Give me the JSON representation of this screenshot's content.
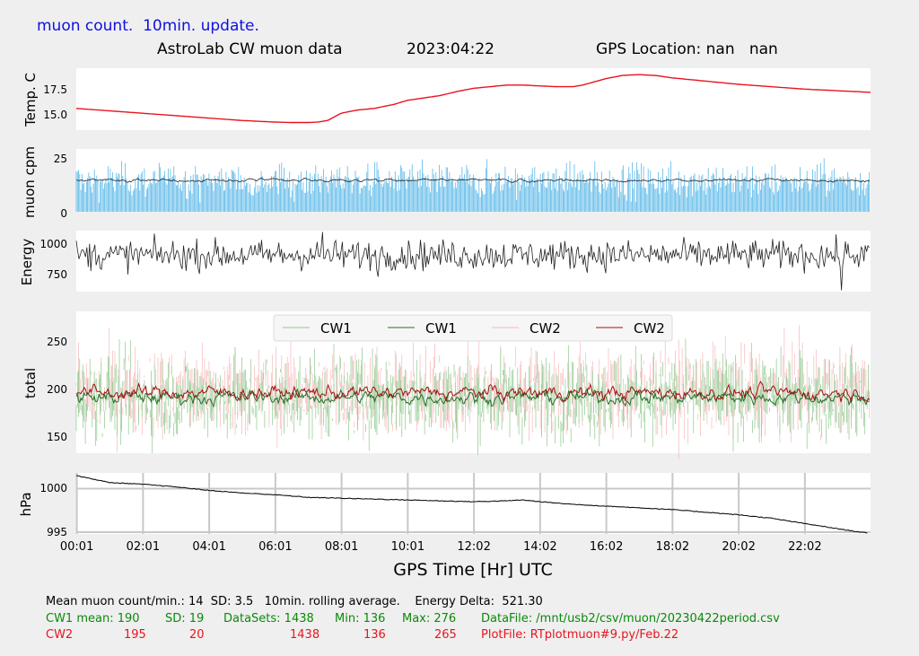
{
  "header": {
    "top_title": "muon count.  10min. update.",
    "subtitle_left": "AstroLab CW muon data",
    "subtitle_date": "2023:04:22",
    "subtitle_gps": "GPS Location: nan   nan"
  },
  "colors": {
    "accent_blue": "#1010e0",
    "green": "#0a8a0a",
    "red": "#e8141e",
    "cw1_raw": "#8cc88c",
    "cw1_avg": "#2a6e2a",
    "cw2_raw": "#f5b8b8",
    "cw2_avg": "#a01010",
    "muon_bar": "#5bb8e8",
    "temp_line": "#e8141e"
  },
  "chart_data": [
    {
      "type": "line",
      "name": "temperature",
      "ylabel": "Temp. C",
      "yticks": [
        "17.5",
        "15.0"
      ],
      "ylim": [
        12.8,
        20.5
      ],
      "series": [
        {
          "x": [
            0,
            1,
            2,
            3,
            4,
            5,
            6,
            6.5,
            7,
            7.3,
            7.6,
            8,
            8.5,
            9,
            9.6,
            10,
            10.5,
            11,
            11.5,
            12,
            12.5,
            13,
            13.5,
            14,
            14.5,
            15,
            15.3,
            16,
            16.5,
            17,
            17.5,
            18,
            19,
            20,
            21,
            22,
            23,
            24
          ],
          "y": [
            15.5,
            15.2,
            14.9,
            14.6,
            14.3,
            14.0,
            13.8,
            13.75,
            13.75,
            13.8,
            14.0,
            14.9,
            15.3,
            15.5,
            16.0,
            16.5,
            16.8,
            17.1,
            17.6,
            18.0,
            18.2,
            18.4,
            18.4,
            18.3,
            18.2,
            18.2,
            18.4,
            19.2,
            19.6,
            19.7,
            19.6,
            19.3,
            18.9,
            18.5,
            18.2,
            17.9,
            17.7,
            17.5
          ]
        }
      ]
    },
    {
      "type": "bar",
      "name": "muon_cpm",
      "ylabel": "muon cpm",
      "yticks": [
        "25",
        "0"
      ],
      "ylim": [
        0,
        28
      ],
      "mean": 14,
      "sd": 3.5
    },
    {
      "type": "line",
      "name": "energy",
      "ylabel": "Energy",
      "yticks": [
        "1000",
        "750"
      ],
      "ylim": [
        610,
        1060
      ],
      "mean": 880
    },
    {
      "type": "line",
      "name": "total",
      "ylabel": "total",
      "yticks": [
        "250",
        "200",
        "150"
      ],
      "ylim": [
        130,
        280
      ],
      "legend": [
        "CW1",
        "CW1",
        "CW2",
        "CW2"
      ],
      "legend_position": "top-center"
    },
    {
      "type": "line",
      "name": "pressure",
      "ylabel": "hPa",
      "yticks": [
        "1000",
        "995"
      ],
      "ylim": [
        994.8,
        1001.8
      ],
      "series": [
        {
          "x": [
            0,
            1,
            2,
            3,
            4,
            5,
            6,
            7,
            8,
            9,
            10,
            11,
            12,
            13,
            13.5,
            14,
            15,
            16,
            17,
            18,
            19,
            20,
            21,
            22,
            23,
            23.9
          ],
          "y": [
            1001.5,
            1000.7,
            1000.5,
            1000.2,
            999.8,
            999.5,
            999.3,
            999.0,
            998.9,
            998.8,
            998.7,
            998.6,
            998.5,
            998.6,
            998.7,
            998.5,
            998.2,
            998.0,
            997.8,
            997.6,
            997.3,
            997.0,
            996.6,
            996.0,
            995.4,
            994.9
          ]
        }
      ],
      "xlabel": "GPS Time  [Hr] UTC",
      "xticks": [
        "00:01",
        "02:01",
        "04:01",
        "06:01",
        "08:01",
        "10:01",
        "12:02",
        "14:02",
        "16:02",
        "18:02",
        "20:02",
        "22:02"
      ],
      "grid": true
    }
  ],
  "footer": {
    "line1": "Mean muon count/min.: 14  SD: 3.5   10min. rolling average.    Energy Delta:  521.30",
    "cw1": {
      "label": "CW1 mean: 190",
      "sd": "SD: 19",
      "datasets": "DataSets: 1438",
      "min": "Min: 136",
      "max": "Max: 276",
      "file": "DataFile: /mnt/usb2/csv/muon/20230422period.csv"
    },
    "cw2": {
      "label": "CW2",
      "mean": "195",
      "sd": "20",
      "datasets": "1438",
      "min": "136",
      "max": "265",
      "file": "PlotFile: RTplotmuon#9.py/Feb.22"
    }
  }
}
